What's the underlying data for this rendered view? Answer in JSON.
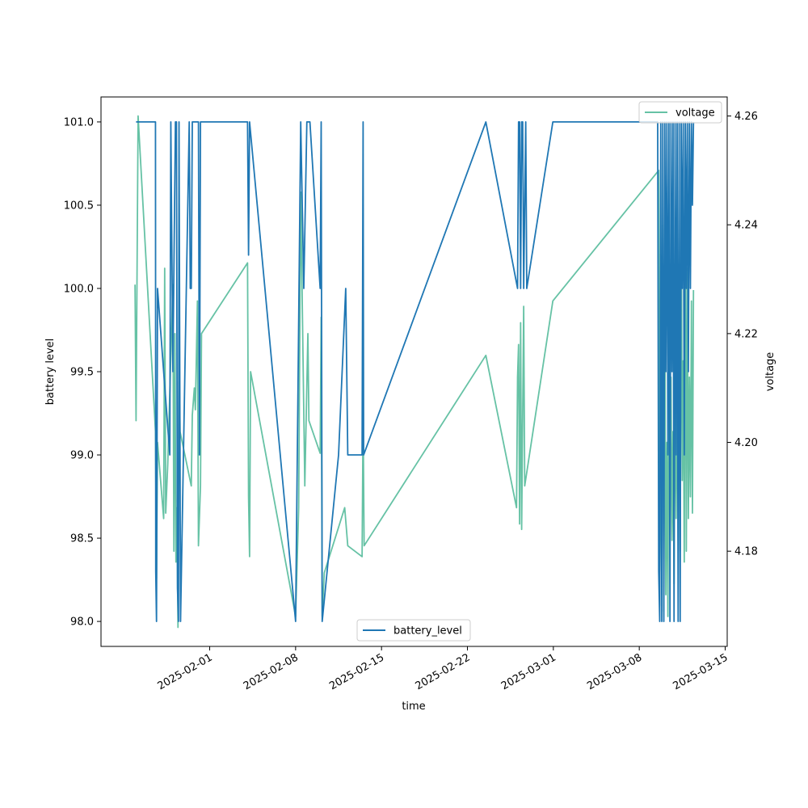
{
  "chart_data": {
    "type": "line",
    "title": "",
    "xlabel": "time",
    "ylabel": "battery level",
    "ylabel_right": "voltage",
    "x_range": [
      "2025-01-24",
      "2025-03-15"
    ],
    "x_ticks": [
      "2025-02-01",
      "2025-02-08",
      "2025-02-15",
      "2025-02-22",
      "2025-03-01",
      "2025-03-08",
      "2025-03-15"
    ],
    "ylim": [
      97.85,
      101.15
    ],
    "ylim_right": [
      4.1625,
      4.2635
    ],
    "y_ticks": [
      "98.0",
      "98.5",
      "99.0",
      "99.5",
      "100.0",
      "100.5",
      "101.0"
    ],
    "y_ticks_right": [
      "4.18",
      "4.20",
      "4.22",
      "4.24",
      "4.26"
    ],
    "grid": false,
    "legend_battery_placement": "lower-center",
    "legend_voltage_placement": "upper-right",
    "series": [
      {
        "name": "battery_level",
        "axis": "left",
        "color": "#1f77b4",
        "points": [
          [
            "2025-01-26 00:00",
            101.0
          ],
          [
            "2025-01-27 14:00",
            101.0
          ],
          [
            "2025-01-27 14:30",
            98.3
          ],
          [
            "2025-01-27 16:00",
            98.0
          ],
          [
            "2025-01-27 18:00",
            100.0
          ],
          [
            "2025-01-28 18:00",
            99.0
          ],
          [
            "2025-01-28 20:00",
            101.0
          ],
          [
            "2025-01-29 00:00",
            99.5
          ],
          [
            "2025-01-29 05:00",
            101.0
          ],
          [
            "2025-01-29 07:00",
            101.0
          ],
          [
            "2025-01-29 09:00",
            98.2
          ],
          [
            "2025-01-29 11:00",
            98.0
          ],
          [
            "2025-01-29 12:00",
            101.0
          ],
          [
            "2025-01-29 15:00",
            98.0
          ],
          [
            "2025-01-30 08:00",
            101.0
          ],
          [
            "2025-01-30 10:00",
            100.0
          ],
          [
            "2025-01-30 12:00",
            100.0
          ],
          [
            "2025-01-30 14:00",
            101.0
          ],
          [
            "2025-01-31 02:00",
            101.0
          ],
          [
            "2025-01-31 04:00",
            99.0
          ],
          [
            "2025-01-31 06:00",
            101.0
          ],
          [
            "2025-02-04 02:00",
            101.0
          ],
          [
            "2025-02-04 04:00",
            100.2
          ],
          [
            "2025-02-04 06:00",
            101.0
          ],
          [
            "2025-02-08 00:00",
            98.0
          ],
          [
            "2025-02-08 10:00",
            101.0
          ],
          [
            "2025-02-08 16:00",
            100.0
          ],
          [
            "2025-02-08 22:00",
            101.0
          ],
          [
            "2025-02-09 04:00",
            101.0
          ],
          [
            "2025-02-10 00:00",
            100.0
          ],
          [
            "2025-02-10 02:00",
            101.0
          ],
          [
            "2025-02-10 04:00",
            98.0
          ],
          [
            "2025-02-11 12:00",
            99.0
          ],
          [
            "2025-02-12 02:00",
            100.0
          ],
          [
            "2025-02-12 06:00",
            99.0
          ],
          [
            "2025-02-13 10:00",
            99.0
          ],
          [
            "2025-02-13 12:00",
            101.0
          ],
          [
            "2025-02-13 13:00",
            99.0
          ],
          [
            "2025-02-23 12:00",
            101.0
          ],
          [
            "2025-02-26 02:00",
            100.0
          ],
          [
            "2025-02-26 04:00",
            101.0
          ],
          [
            "2025-02-26 06:00",
            101.0
          ],
          [
            "2025-02-26 08:00",
            100.0
          ],
          [
            "2025-02-26 10:00",
            101.0
          ],
          [
            "2025-02-26 12:00",
            101.0
          ],
          [
            "2025-02-26 14:00",
            100.0
          ],
          [
            "2025-02-26 18:00",
            101.0
          ],
          [
            "2025-02-26 20:00",
            100.0
          ],
          [
            "2025-02-28 23:00",
            101.0
          ],
          [
            "2025-03-09 12:00",
            101.0
          ],
          [
            "2025-03-09 14:00",
            98.3
          ],
          [
            "2025-03-09 16:00",
            98.0
          ],
          [
            "2025-03-09 18:00",
            101.0
          ],
          [
            "2025-03-09 20:00",
            98.0
          ],
          [
            "2025-03-09 22:00",
            101.0
          ],
          [
            "2025-03-10 00:00",
            98.0
          ],
          [
            "2025-03-10 02:00",
            101.0
          ],
          [
            "2025-03-10 04:00",
            99.5
          ],
          [
            "2025-03-10 06:00",
            101.0
          ],
          [
            "2025-03-10 08:00",
            99.0
          ],
          [
            "2025-03-10 10:00",
            101.0
          ],
          [
            "2025-03-10 12:00",
            98.0
          ],
          [
            "2025-03-10 14:00",
            101.0
          ],
          [
            "2025-03-10 16:00",
            99.5
          ],
          [
            "2025-03-10 18:00",
            101.0
          ],
          [
            "2025-03-10 20:00",
            98.0
          ],
          [
            "2025-03-10 22:00",
            101.0
          ],
          [
            "2025-03-11 00:00",
            99.0
          ],
          [
            "2025-03-11 02:00",
            101.0
          ],
          [
            "2025-03-11 04:00",
            98.0
          ],
          [
            "2025-03-11 06:00",
            101.0
          ],
          [
            "2025-03-11 08:00",
            98.0
          ],
          [
            "2025-03-11 10:00",
            101.0
          ],
          [
            "2025-03-11 12:00",
            100.0
          ],
          [
            "2025-03-11 14:00",
            101.0
          ],
          [
            "2025-03-11 16:00",
            99.0
          ],
          [
            "2025-03-11 18:00",
            101.0
          ],
          [
            "2025-03-11 20:00",
            100.0
          ],
          [
            "2025-03-11 22:00",
            101.0
          ],
          [
            "2025-03-12 00:00",
            99.5
          ],
          [
            "2025-03-12 02:00",
            101.0
          ],
          [
            "2025-03-12 04:00",
            100.0
          ],
          [
            "2025-03-12 06:00",
            101.0
          ],
          [
            "2025-03-12 08:00",
            100.5
          ],
          [
            "2025-03-12 10:00",
            101.0
          ]
        ]
      },
      {
        "name": "voltage",
        "axis": "right",
        "color": "#66c2a5",
        "points": [
          [
            "2025-01-25 22:00",
            4.229
          ],
          [
            "2025-01-26 00:00",
            4.204
          ],
          [
            "2025-01-26 04:00",
            4.26
          ],
          [
            "2025-01-27 14:00",
            4.202
          ],
          [
            "2025-01-27 16:00",
            4.175
          ],
          [
            "2025-01-27 18:00",
            4.2
          ],
          [
            "2025-01-28 06:00",
            4.186
          ],
          [
            "2025-01-28 08:00",
            4.232
          ],
          [
            "2025-01-28 10:00",
            4.187
          ],
          [
            "2025-01-28 14:00",
            4.196
          ],
          [
            "2025-01-29 00:00",
            4.229
          ],
          [
            "2025-01-29 02:00",
            4.18
          ],
          [
            "2025-01-29 04:00",
            4.22
          ],
          [
            "2025-01-29 06:00",
            4.178
          ],
          [
            "2025-01-29 08:00",
            4.188
          ],
          [
            "2025-01-29 10:00",
            4.166
          ],
          [
            "2025-01-29 12:00",
            4.218
          ],
          [
            "2025-01-29 14:00",
            4.202
          ],
          [
            "2025-01-30 12:00",
            4.192
          ],
          [
            "2025-01-30 14:00",
            4.205
          ],
          [
            "2025-01-30 18:00",
            4.21
          ],
          [
            "2025-01-30 20:00",
            4.206
          ],
          [
            "2025-01-31 00:00",
            4.226
          ],
          [
            "2025-01-31 02:00",
            4.181
          ],
          [
            "2025-01-31 06:00",
            4.192
          ],
          [
            "2025-01-31 08:00",
            4.22
          ],
          [
            "2025-02-04 02:00",
            4.233
          ],
          [
            "2025-02-04 04:00",
            4.19
          ],
          [
            "2025-02-04 06:00",
            4.179
          ],
          [
            "2025-02-04 08:00",
            4.213
          ],
          [
            "2025-02-08 00:00",
            4.168
          ],
          [
            "2025-02-08 06:00",
            4.188
          ],
          [
            "2025-02-08 10:00",
            4.246
          ],
          [
            "2025-02-08 18:00",
            4.192
          ],
          [
            "2025-02-09 00:00",
            4.22
          ],
          [
            "2025-02-09 02:00",
            4.204
          ],
          [
            "2025-02-10 00:00",
            4.198
          ],
          [
            "2025-02-10 02:00",
            4.223
          ],
          [
            "2025-02-10 04:00",
            4.168
          ],
          [
            "2025-02-10 08:00",
            4.176
          ],
          [
            "2025-02-12 00:00",
            4.188
          ],
          [
            "2025-02-12 06:00",
            4.181
          ],
          [
            "2025-02-13 10:00",
            4.179
          ],
          [
            "2025-02-13 12:00",
            4.205
          ],
          [
            "2025-02-13 14:00",
            4.181
          ],
          [
            "2025-02-23 12:00",
            4.216
          ],
          [
            "2025-02-26 00:00",
            4.188
          ],
          [
            "2025-02-26 02:00",
            4.212
          ],
          [
            "2025-02-26 04:00",
            4.218
          ],
          [
            "2025-02-26 06:00",
            4.185
          ],
          [
            "2025-02-26 08:00",
            4.222
          ],
          [
            "2025-02-26 10:00",
            4.184
          ],
          [
            "2025-02-26 14:00",
            4.225
          ],
          [
            "2025-02-26 16:00",
            4.192
          ],
          [
            "2025-02-28 23:00",
            4.226
          ],
          [
            "2025-03-09 14:00",
            4.25
          ],
          [
            "2025-03-09 16:00",
            4.17
          ],
          [
            "2025-03-09 18:00",
            4.21
          ],
          [
            "2025-03-09 20:00",
            4.172
          ],
          [
            "2025-03-09 22:00",
            4.24
          ],
          [
            "2025-03-10 00:00",
            4.169
          ],
          [
            "2025-03-10 02:00",
            4.224
          ],
          [
            "2025-03-10 04:00",
            4.172
          ],
          [
            "2025-03-10 06:00",
            4.2
          ],
          [
            "2025-03-10 08:00",
            4.168
          ],
          [
            "2025-03-10 10:00",
            4.22
          ],
          [
            "2025-03-10 12:00",
            4.183
          ],
          [
            "2025-03-10 14:00",
            4.212
          ],
          [
            "2025-03-10 16:00",
            4.182
          ],
          [
            "2025-03-10 18:00",
            4.202
          ],
          [
            "2025-03-10 20:00",
            4.174
          ],
          [
            "2025-03-10 22:00",
            4.216
          ],
          [
            "2025-03-11 00:00",
            4.186
          ],
          [
            "2025-03-11 02:00",
            4.21
          ],
          [
            "2025-03-11 04:00",
            4.182
          ],
          [
            "2025-03-11 06:00",
            4.238
          ],
          [
            "2025-03-11 08:00",
            4.18
          ],
          [
            "2025-03-11 10:00",
            4.246
          ],
          [
            "2025-03-11 12:00",
            4.193
          ],
          [
            "2025-03-11 14:00",
            4.215
          ],
          [
            "2025-03-11 16:00",
            4.178
          ],
          [
            "2025-03-11 18:00",
            4.245
          ],
          [
            "2025-03-11 20:00",
            4.18
          ],
          [
            "2025-03-11 22:00",
            4.232
          ],
          [
            "2025-03-12 00:00",
            4.186
          ],
          [
            "2025-03-12 02:00",
            4.212
          ],
          [
            "2025-03-12 04:00",
            4.19
          ],
          [
            "2025-03-12 06:00",
            4.226
          ],
          [
            "2025-03-12 08:00",
            4.187
          ],
          [
            "2025-03-12 10:00",
            4.228
          ]
        ]
      }
    ]
  }
}
